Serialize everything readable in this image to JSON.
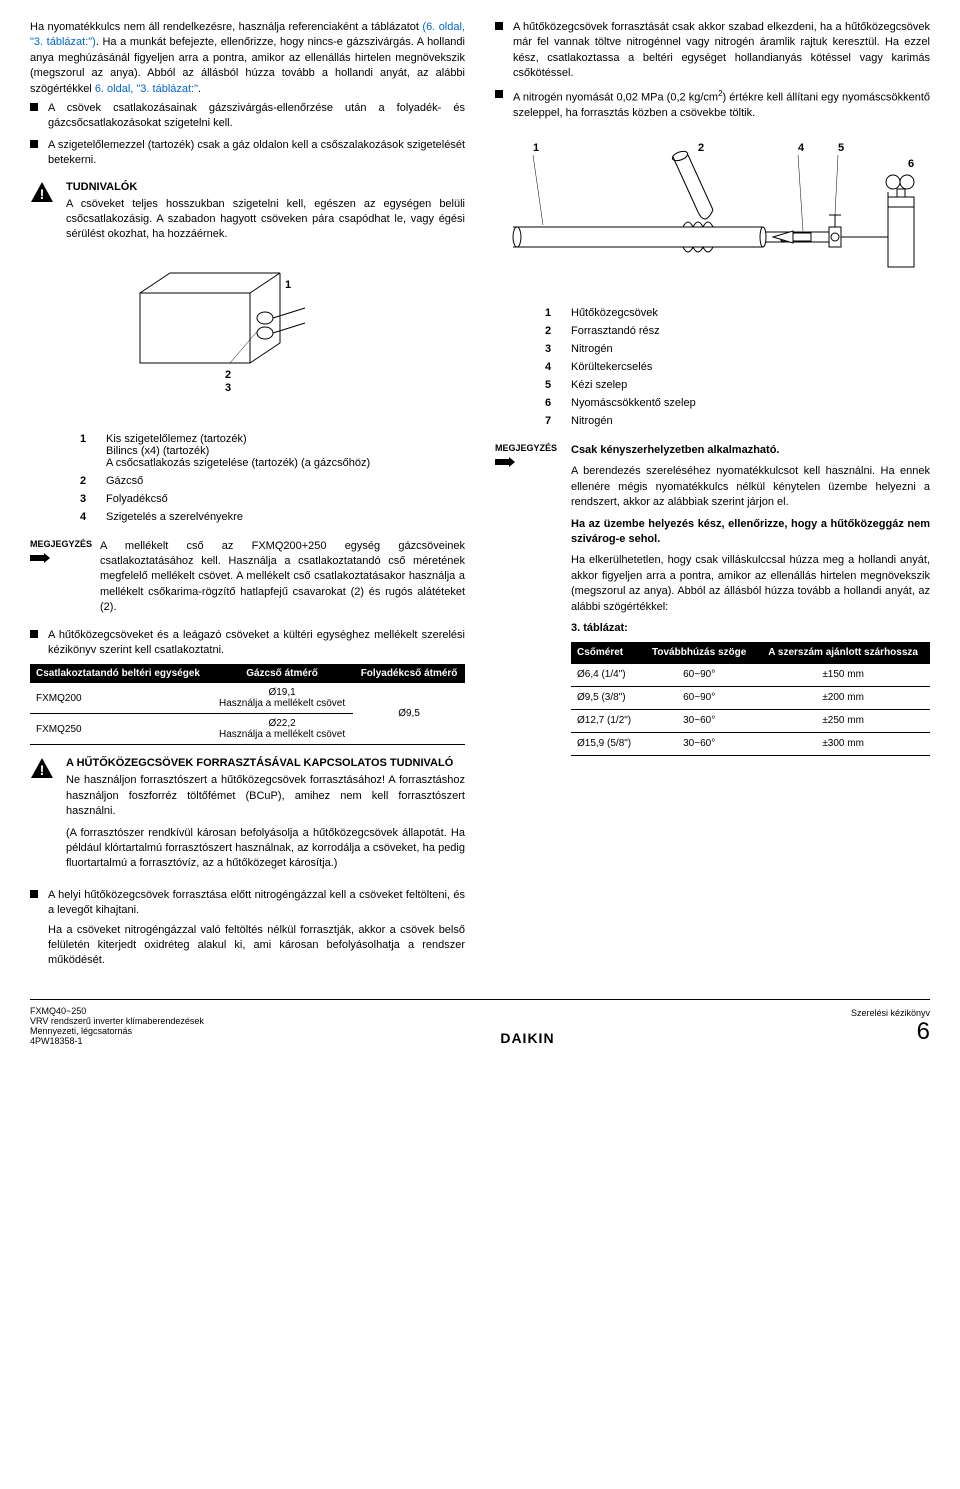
{
  "left": {
    "p1a": "Ha nyomatékkulcs nem áll rendelkezésre, használja referenciaként a táblázatot ",
    "p1b": "(6. oldal, \"3. táblázat:\")",
    "p1c": ". Ha a munkát befejezte, ellenőrizze, hogy nincs-e gázszivárgás. A hollandi anya meghúzásánál figyeljen arra a pontra, amikor az ellenállás hirtelen megnövekszik (megszorul az anya). Abból az állásból húzza tovább a hollandi anyát, az alábbi szögértékkel ",
    "p1d": "6. oldal, \"3. táblázat:\"",
    "b1": "A csövek csatlakozásainak gázszivárgás-ellenőrzése után a folyadék- és gázcsőcsatlakozásokat szigetelni kell.",
    "b2": "A szigetelőlemezzel (tartozék) csak a gáz oldalon kell a csőszalakozások szigetelését betekerni.",
    "warn1_title": "TUDNIVALÓK",
    "warn1_body": "A csöveket teljes hosszukban szigetelni kell, egészen az egységen belüli csőcsatlakozásig. A szabadon hagyott csöveken pára csapódhat le, vagy égési sérülést okozhat, ha hozzáérnek.",
    "legend1_1a": "Kis szigetelőlemez (tartozék)",
    "legend1_1b": "Bilincs (x4) (tartozék)",
    "legend1_1c": "A csőcsatlakozás szigetelése (tartozék) (a gázcsőhöz)",
    "legend1_2": "Gázcső",
    "legend1_3": "Folyadékcső",
    "legend1_4": "Szigetelés a szerelvényekre",
    "note1_label": "MEGJEGYZÉS",
    "note1": "A mellékelt cső az FXMQ200+250 egység gázcsöveinek csatlakoztatásához kell. Használja a csatlakoztatandó cső méretének megfelelő mellékelt csövet. A mellékelt cső csatlakoztatásakor használja a mellékelt csőkarima-rögzítő hatlapfejű csavarokat (2) és rugós alátéteket (2).",
    "b3": "A hűtőközegcsöveket és a leágazó csöveket a kültéri egységhez mellékelt szerelési kézikönyv szerint kell csatlakoztatni.",
    "table1_h1": "Csatlakoztatandó beltéri egységek",
    "table1_h2": "Gázcső átmérő",
    "table1_h3": "Folyadékcső átmérő",
    "table1_r1c1": "FXMQ200",
    "table1_r1c2a": "Ø19,1",
    "table1_r1c2b": "Használja a mellékelt csövet",
    "table1_r2c1": "FXMQ250",
    "table1_r2c2a": "Ø22,2",
    "table1_r2c2b": "Használja a mellékelt csövet",
    "table1_liquid": "Ø9,5",
    "warn2_title": "A HŰTŐKÖZEGCSÖVEK FORRASZTÁSÁVAL KAPCSOLATOS TUDNIVALÓ",
    "warn2_p1": "Ne használjon forrasztószert a hűtőközegcsövek forrasztásához! A forrasztáshoz használjon foszforréz töltőfémet (BCuP), amihez nem kell forrasztószert használni.",
    "warn2_p2": "(A forrasztószer rendkívül károsan befolyásolja a hűtőközegcsövek állapotát. Ha például klórtartalmú forrasztószert használnak, az korrodálja a csöveket, ha pedig fluortartalmú a forrasztóvíz, az a hűtőközeget károsítja.)",
    "b4": "A helyi hűtőközegcsövek forrasztása előtt nitrogéngázzal kell a csöveket feltölteni, és a levegőt kihajtani.",
    "b4b": "Ha a csöveket nitrogéngázzal való feltöltés nélkül forrasztják, akkor a csövek belső felületén kiterjedt oxidréteg alakul ki, ami károsan befolyásolhatja a rendszer működését."
  },
  "right": {
    "b1": "A hűtőközegcsövek forrasztását csak akkor szabad elkezdeni, ha a hűtőközegcsövek már fel vannak töltve nitrogénnel vagy nitrogén áramlik rajtuk keresztül. Ha ezzel kész, csatlakoztassa a beltéri egységet hollandianyás kötéssel vagy karimás csőkötéssel.",
    "b2a": "A nitrogén nyomását 0,02 MPa (0,2 kg/cm",
    "b2b": ") értékre kell állítani egy nyomáscsökkentő szeleppel, ha forrasztás közben a csövekbe töltik.",
    "legend2_1": "Hűtőközegcsövek",
    "legend2_2": "Forrasztandó rész",
    "legend2_3": "Nitrogén",
    "legend2_4": "Körültekercselés",
    "legend2_5": "Kézi szelep",
    "legend2_6": "Nyomáscsökkentő szelep",
    "legend2_7": "Nitrogén",
    "note2_label": "MEGJEGYZÉS",
    "note2_bold": "Csak kényszerhelyzetben alkalmazható.",
    "note2_p1": "A berendezés szereléséhez nyomatékkulcsot kell használni. Ha ennek ellenére mégis nyomatékkulcs nélkül kénytelen üzembe helyezni a rendszert, akkor az alábbiak szerint járjon el.",
    "note2_p2": "Ha az üzembe helyezés kész, ellenőrizze, hogy a hűtőközeggáz nem szivárog-e sehol.",
    "note2_p3": "Ha elkerülhetetlen, hogy csak villáskulccsal húzza meg a hollandi anyát, akkor figyeljen arra a pontra, amikor az ellenállás hirtelen megnövekszik (megszorul az anya). Abból az állásból húzza tovább a hollandi anyát, az alábbi szögértékkel:",
    "table3_caption": "3. táblázat:",
    "table3_h1": "Csőméret",
    "table3_h2": "Továbbhúzás szöge",
    "table3_h3": "A szerszám ajánlott szárhossza",
    "table3": [
      [
        "Ø6,4 (1/4\")",
        "60~90°",
        "±150 mm"
      ],
      [
        "Ø9,5 (3/8\")",
        "60~90°",
        "±200 mm"
      ],
      [
        "Ø12,7 (1/2\")",
        "30~60°",
        "±250 mm"
      ],
      [
        "Ø15,9 (5/8\")",
        "30~60°",
        "±300 mm"
      ]
    ]
  },
  "footer": {
    "model": "FXMQ40~250",
    "line2": "VRV rendszerű inverter klímaberendezések",
    "line3": "Mennyezeti, légcsatornás",
    "doc": "4PW18358-1",
    "logo": "DAIKIN",
    "manual": "Szerelési kézikönyv",
    "page": "6"
  }
}
